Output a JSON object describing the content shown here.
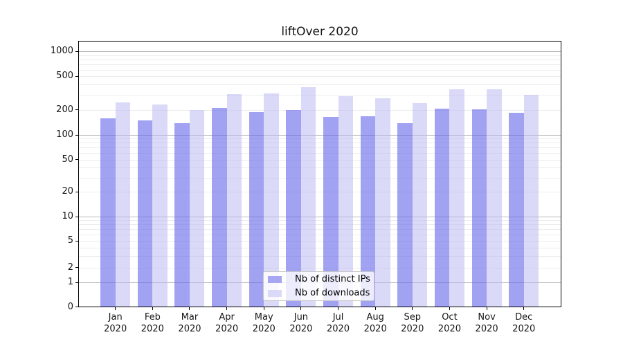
{
  "chart_data": {
    "type": "bar",
    "title": "liftOver 2020",
    "categories": [
      "Jan 2020",
      "Feb 2020",
      "Mar 2020",
      "Apr 2020",
      "May 2020",
      "Jun 2020",
      "Jul 2020",
      "Aug 2020",
      "Sep 2020",
      "Oct 2020",
      "Nov 2020",
      "Dec 2020"
    ],
    "series": [
      {
        "name": "Nb of distinct IPs",
        "color": "#a6a6f3",
        "fill": "rgba(105,105,235,0.62)",
        "values": [
          158,
          148,
          139,
          211,
          188,
          198,
          163,
          166,
          138,
          205,
          202,
          183
        ]
      },
      {
        "name": "Nb of downloads",
        "color": "#dadaf8",
        "fill": "rgba(184,184,241,0.52)",
        "values": [
          246,
          231,
          198,
          309,
          313,
          372,
          289,
          273,
          241,
          349,
          349,
          303
        ]
      }
    ],
    "xlabel": "",
    "ylabel": "",
    "yscale": "symlog",
    "ylim": [
      0,
      1320
    ],
    "y_ticks": [
      {
        "value": 1000,
        "label": "1000"
      },
      {
        "value": 500,
        "label": "500"
      },
      {
        "value": 200,
        "label": "200"
      },
      {
        "value": 100,
        "label": "100"
      },
      {
        "value": 50,
        "label": "50"
      },
      {
        "value": 20,
        "label": "20"
      },
      {
        "value": 10,
        "label": "10"
      },
      {
        "value": 5,
        "label": "5"
      },
      {
        "value": 2,
        "label": "2"
      },
      {
        "value": 1,
        "label": "1"
      },
      {
        "value": 0,
        "label": "0"
      }
    ],
    "grid": true,
    "legend_position": "lower center"
  }
}
